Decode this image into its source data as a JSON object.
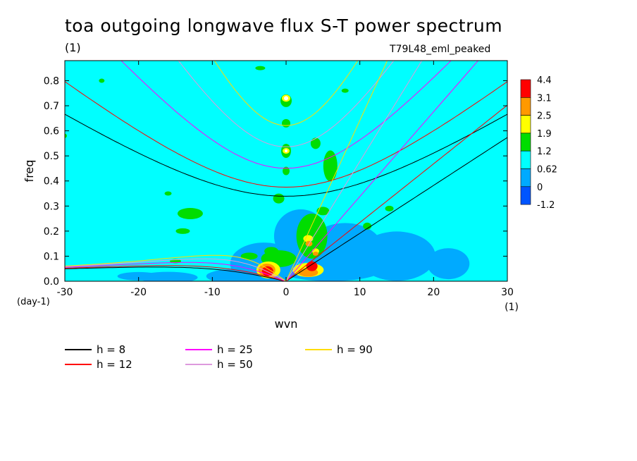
{
  "chart_data": {
    "type": "filled-contour",
    "title": "toa outgoing longwave flux S-T power spectrum",
    "unit_label": "(1)",
    "run_label": "T79L48_eml_peaked",
    "xlabel": "wvn",
    "xunit": "(1)",
    "ylabel": "freq",
    "yunit": "(day-1)",
    "xlim": [
      -30,
      30
    ],
    "ylim": [
      0,
      0.88
    ],
    "x_ticks": [
      "-30",
      "-20",
      "-10",
      "0",
      "10",
      "20",
      "30"
    ],
    "y_ticks": [
      "0.0",
      "0.1",
      "0.2",
      "0.3",
      "0.4",
      "0.5",
      "0.6",
      "0.7",
      "0.8"
    ],
    "colorbar": {
      "levels": [
        "4.4",
        "3.1",
        "2.5",
        "1.9",
        "1.2",
        "0.62",
        "0",
        "-1.2"
      ],
      "colors": [
        "#ff0000",
        "#ff9900",
        "#ffff00",
        "#00dd00",
        "#00ffff",
        "#00aaff",
        "#0055ff"
      ]
    },
    "background_level_color": "#00ffff",
    "dispersion_curves": [
      {
        "label": "h =  8",
        "h": 8,
        "color": "#000000"
      },
      {
        "label": "h = 12",
        "h": 12,
        "color": "#ff0000"
      },
      {
        "label": "h = 25",
        "h": 25,
        "color": "#ff00ff"
      },
      {
        "label": "h = 50",
        "h": 50,
        "color": "#dd99dd"
      },
      {
        "label": "h = 90",
        "h": 90,
        "color": "#ffdd00"
      }
    ],
    "features": [
      {
        "name": "westward low-frequency peak",
        "x": -2.5,
        "y": 0.04,
        "level_color": "#ff0000"
      },
      {
        "name": "eastward kelvin peak",
        "x": 3.5,
        "y": 0.06,
        "level_color": "#ff0000"
      },
      {
        "name": "zonal-mean high frequency blob",
        "x": 0,
        "y": 0.73,
        "level_color": "#ffff00"
      }
    ]
  }
}
